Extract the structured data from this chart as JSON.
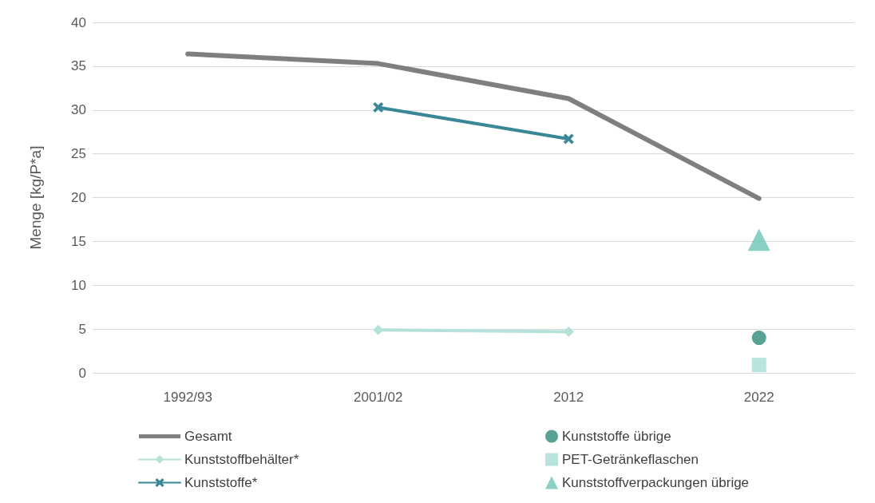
{
  "chart_data": {
    "type": "line",
    "ylabel": "Menge [kg/P*a]",
    "categories": [
      "1992/93",
      "2001/02",
      "2012",
      "2022"
    ],
    "series": [
      {
        "name": "Gesamt",
        "color": "#7f7f7f",
        "marker": "none",
        "values": [
          36.4,
          35.3,
          31.3,
          19.9
        ]
      },
      {
        "name": "Kunststoffbehälter*",
        "color": "#b4e2d8",
        "marker": "diamond",
        "values": [
          null,
          4.9,
          4.7,
          null
        ]
      },
      {
        "name": "Kunststoffe*",
        "color": "#3a8797",
        "marker": "cross",
        "values": [
          null,
          30.3,
          26.7,
          null
        ]
      },
      {
        "name": "Kunststoffe übrige",
        "type": "scatter",
        "color": "#2e8b7b",
        "marker": "circle",
        "values": [
          null,
          null,
          null,
          4.0
        ]
      },
      {
        "name": "PET-Getränkeflaschen",
        "type": "scatter",
        "color": "#a8ddd5",
        "marker": "square",
        "values": [
          null,
          null,
          null,
          0.9
        ]
      },
      {
        "name": "Kunststoffverpackungen übrige",
        "type": "scatter",
        "color": "#6cc6b9",
        "marker": "triangle",
        "values": [
          null,
          null,
          null,
          15.2
        ]
      }
    ],
    "ylim": [
      0,
      40
    ],
    "yticks": [
      0,
      5,
      10,
      15,
      20,
      25,
      30,
      35,
      40
    ],
    "grid": "y",
    "legend": "bottom"
  }
}
